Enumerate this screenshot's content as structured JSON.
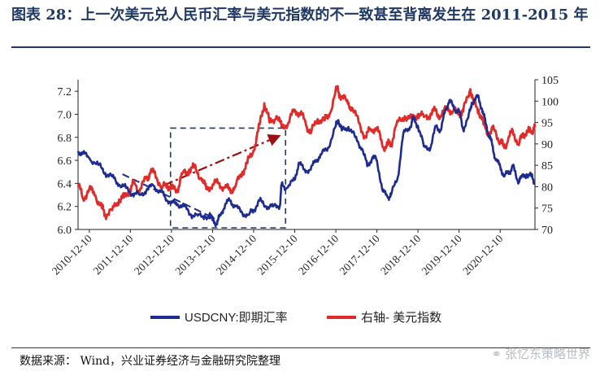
{
  "title": "图表 28：上一次美元兑人民币汇率与美元指数的不一致甚至背离发生在 2011-2015 年",
  "source": "数据来源：   Wind，兴业证券经济与金融研究院整理",
  "watermark": "张忆东策略世界",
  "colors": {
    "usdcny": "#1f2c8f",
    "dxy": "#e02b2b",
    "title": "#1f3864",
    "annotation_arrow": "#9b1111",
    "annotation_box": "#1f3864"
  },
  "chart_data": {
    "type": "line",
    "x_axis": {
      "min": "2010-09-01",
      "max": "2021-10-15",
      "ticks": [
        "2010-12-10",
        "2011-12-10",
        "2012-12-10",
        "2013-12-10",
        "2014-12-10",
        "2015-12-10",
        "2016-12-10",
        "2017-12-10",
        "2018-12-10",
        "2019-12-10",
        "2020-12-10"
      ]
    },
    "y_left": {
      "min": 6.0,
      "max": 7.3,
      "ticks": [
        "6.0",
        "6.2",
        "6.4",
        "6.6",
        "6.8",
        "7.0",
        "7.2"
      ]
    },
    "y_right": {
      "min": 70,
      "max": 105,
      "ticks": [
        "70",
        "75",
        "80",
        "85",
        "90",
        "95",
        "100",
        "105"
      ]
    },
    "series": [
      {
        "name": "USDCNY:即期汇率",
        "axis": "left",
        "color": "#1f2c8f",
        "points": [
          [
            "2010-09-01",
            6.68
          ],
          [
            "2010-10-15",
            6.66
          ],
          [
            "2010-12-10",
            6.62
          ],
          [
            "2011-03-01",
            6.56
          ],
          [
            "2011-05-01",
            6.49
          ],
          [
            "2011-07-01",
            6.46
          ],
          [
            "2011-09-01",
            6.39
          ],
          [
            "2011-11-01",
            6.36
          ],
          [
            "2012-01-01",
            6.31
          ],
          [
            "2012-03-01",
            6.3
          ],
          [
            "2012-05-01",
            6.34
          ],
          [
            "2012-07-01",
            6.38
          ],
          [
            "2012-09-01",
            6.33
          ],
          [
            "2012-10-15",
            6.28
          ],
          [
            "2012-12-10",
            6.23
          ],
          [
            "2013-02-01",
            6.22
          ],
          [
            "2013-04-01",
            6.2
          ],
          [
            "2013-06-01",
            6.13
          ],
          [
            "2013-08-01",
            6.12
          ],
          [
            "2013-10-01",
            6.12
          ],
          [
            "2013-12-10",
            6.08
          ],
          [
            "2014-01-15",
            6.05
          ],
          [
            "2014-02-15",
            6.12
          ],
          [
            "2014-04-01",
            6.22
          ],
          [
            "2014-05-15",
            6.25
          ],
          [
            "2014-07-01",
            6.2
          ],
          [
            "2014-09-01",
            6.14
          ],
          [
            "2014-11-01",
            6.13
          ],
          [
            "2014-12-10",
            6.17
          ],
          [
            "2015-02-01",
            6.25
          ],
          [
            "2015-04-01",
            6.2
          ],
          [
            "2015-06-01",
            6.2
          ],
          [
            "2015-08-01",
            6.21
          ],
          [
            "2015-08-15",
            6.39
          ],
          [
            "2015-10-01",
            6.36
          ],
          [
            "2015-12-10",
            6.43
          ],
          [
            "2016-01-15",
            6.58
          ],
          [
            "2016-03-01",
            6.52
          ],
          [
            "2016-05-01",
            6.52
          ],
          [
            "2016-06-15",
            6.6
          ],
          [
            "2016-08-01",
            6.65
          ],
          [
            "2016-10-01",
            6.71
          ],
          [
            "2016-12-10",
            6.9
          ],
          [
            "2017-01-01",
            6.95
          ],
          [
            "2017-02-01",
            6.86
          ],
          [
            "2017-04-01",
            6.89
          ],
          [
            "2017-06-01",
            6.8
          ],
          [
            "2017-08-01",
            6.7
          ],
          [
            "2017-09-15",
            6.55
          ],
          [
            "2017-11-01",
            6.63
          ],
          [
            "2017-12-10",
            6.6
          ],
          [
            "2018-02-01",
            6.33
          ],
          [
            "2018-03-15",
            6.28
          ],
          [
            "2018-04-15",
            6.3
          ],
          [
            "2018-06-15",
            6.46
          ],
          [
            "2018-08-01",
            6.83
          ],
          [
            "2018-10-01",
            6.89
          ],
          [
            "2018-10-30",
            6.96
          ],
          [
            "2018-12-10",
            6.9
          ],
          [
            "2019-02-01",
            6.72
          ],
          [
            "2019-04-01",
            6.71
          ],
          [
            "2019-05-20",
            6.9
          ],
          [
            "2019-07-01",
            6.86
          ],
          [
            "2019-08-15",
            7.05
          ],
          [
            "2019-09-15",
            7.12
          ],
          [
            "2019-11-01",
            7.04
          ],
          [
            "2019-12-10",
            7.03
          ],
          [
            "2020-01-15",
            6.87
          ],
          [
            "2020-03-01",
            6.97
          ],
          [
            "2020-04-01",
            7.1
          ],
          [
            "2020-05-25",
            7.15
          ],
          [
            "2020-07-01",
            7.05
          ],
          [
            "2020-08-01",
            6.93
          ],
          [
            "2020-09-01",
            6.82
          ],
          [
            "2020-10-01",
            6.73
          ],
          [
            "2020-11-01",
            6.6
          ],
          [
            "2020-12-10",
            6.55
          ],
          [
            "2021-01-15",
            6.46
          ],
          [
            "2021-03-01",
            6.5
          ],
          [
            "2021-04-01",
            6.55
          ],
          [
            "2021-05-15",
            6.42
          ],
          [
            "2021-06-15",
            6.45
          ],
          [
            "2021-08-01",
            6.48
          ],
          [
            "2021-09-15",
            6.46
          ],
          [
            "2021-10-15",
            6.4
          ]
        ]
      },
      {
        "name": "右轴- 美元指数",
        "axis": "right",
        "color": "#e02b2b",
        "points": [
          [
            "2010-09-01",
            80.5
          ],
          [
            "2010-10-15",
            77.2
          ],
          [
            "2010-12-10",
            79.5
          ],
          [
            "2011-02-01",
            78.0
          ],
          [
            "2011-04-01",
            75.0
          ],
          [
            "2011-05-01",
            73.5
          ],
          [
            "2011-07-01",
            74.5
          ],
          [
            "2011-09-01",
            77.0
          ],
          [
            "2011-10-15",
            77.5
          ],
          [
            "2011-12-10",
            79.5
          ],
          [
            "2012-01-15",
            81.0
          ],
          [
            "2012-03-01",
            79.0
          ],
          [
            "2012-05-01",
            82.0
          ],
          [
            "2012-06-01",
            83.0
          ],
          [
            "2012-07-15",
            83.5
          ],
          [
            "2012-09-15",
            79.5
          ],
          [
            "2012-11-01",
            80.5
          ],
          [
            "2012-12-10",
            79.5
          ],
          [
            "2013-02-01",
            79.3
          ],
          [
            "2013-03-15",
            83.0
          ],
          [
            "2013-05-15",
            84.0
          ],
          [
            "2013-07-01",
            84.5
          ],
          [
            "2013-09-01",
            82.0
          ],
          [
            "2013-10-15",
            79.5
          ],
          [
            "2013-12-10",
            80.5
          ],
          [
            "2014-02-01",
            80.8
          ],
          [
            "2014-04-01",
            79.8
          ],
          [
            "2014-05-15",
            79.2
          ],
          [
            "2014-07-01",
            80.0
          ],
          [
            "2014-09-01",
            83.5
          ],
          [
            "2014-10-15",
            85.5
          ],
          [
            "2014-12-10",
            88.5
          ],
          [
            "2015-02-01",
            94.5
          ],
          [
            "2015-03-15",
            99.5
          ],
          [
            "2015-05-01",
            95.0
          ],
          [
            "2015-07-01",
            96.5
          ],
          [
            "2015-08-15",
            94.0
          ],
          [
            "2015-10-15",
            95.0
          ],
          [
            "2015-12-10",
            98.0
          ],
          [
            "2016-02-01",
            97.0
          ],
          [
            "2016-03-15",
            95.0
          ],
          [
            "2016-05-01",
            92.5
          ],
          [
            "2016-07-01",
            95.8
          ],
          [
            "2016-09-01",
            95.5
          ],
          [
            "2016-10-15",
            97.0
          ],
          [
            "2016-12-20",
            103.0
          ],
          [
            "2017-01-15",
            101.5
          ],
          [
            "2017-03-15",
            100.0
          ],
          [
            "2017-05-01",
            98.5
          ],
          [
            "2017-07-01",
            95.0
          ],
          [
            "2017-09-01",
            91.5
          ],
          [
            "2017-10-15",
            93.5
          ],
          [
            "2017-12-10",
            93.8
          ],
          [
            "2018-02-01",
            89.2
          ],
          [
            "2018-03-15",
            89.8
          ],
          [
            "2018-04-15",
            90.0
          ],
          [
            "2018-06-01",
            94.5
          ],
          [
            "2018-08-15",
            96.5
          ],
          [
            "2018-10-15",
            95.8
          ],
          [
            "2018-12-10",
            97.0
          ],
          [
            "2019-02-01",
            96.3
          ],
          [
            "2019-04-01",
            97.0
          ],
          [
            "2019-05-15",
            97.8
          ],
          [
            "2019-07-01",
            96.3
          ],
          [
            "2019-09-01",
            98.6
          ],
          [
            "2019-10-15",
            97.5
          ],
          [
            "2019-12-10",
            97.2
          ],
          [
            "2020-01-15",
            97.5
          ],
          [
            "2020-03-20",
            102.8
          ],
          [
            "2020-04-15",
            100.0
          ],
          [
            "2020-06-01",
            98.0
          ],
          [
            "2020-07-15",
            94.5
          ],
          [
            "2020-09-01",
            92.3
          ],
          [
            "2020-10-15",
            93.5
          ],
          [
            "2020-12-10",
            90.6
          ],
          [
            "2021-01-06",
            89.5
          ],
          [
            "2021-02-15",
            90.5
          ],
          [
            "2021-03-31",
            93.2
          ],
          [
            "2021-05-25",
            89.7
          ],
          [
            "2021-07-01",
            92.5
          ],
          [
            "2021-08-15",
            92.8
          ],
          [
            "2021-09-15",
            93.0
          ],
          [
            "2021-10-15",
            93.9
          ]
        ]
      }
    ]
  }
}
